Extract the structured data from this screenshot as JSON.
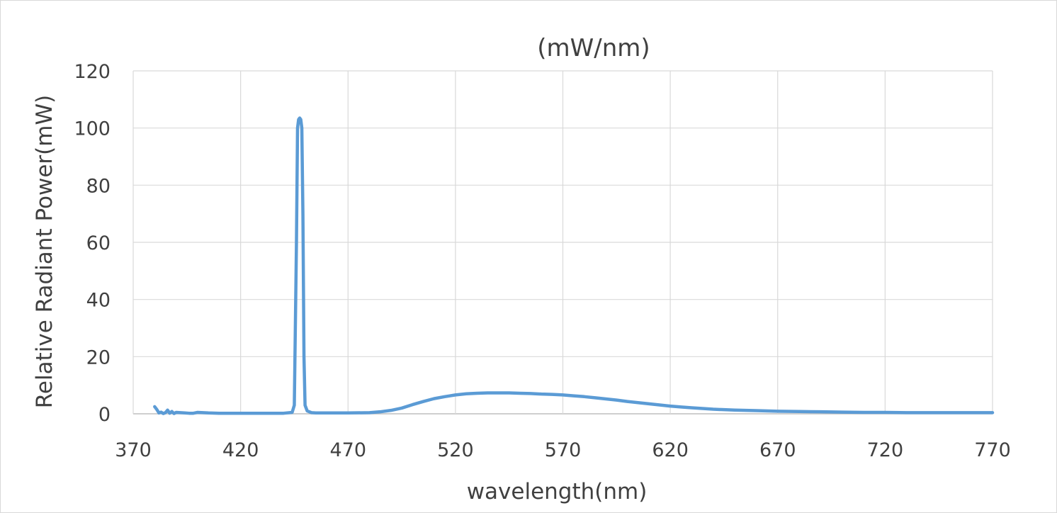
{
  "chart_data": {
    "type": "line",
    "title": "(mW/nm)",
    "xlabel": "wavelength(nm)",
    "ylabel": "Relative Radiant Power(mW)",
    "xlim": [
      370,
      770
    ],
    "ylim": [
      0,
      120
    ],
    "x_ticks": [
      "370",
      "420",
      "470",
      "520",
      "570",
      "620",
      "670",
      "720",
      "770"
    ],
    "y_ticks": [
      "0",
      "20",
      "40",
      "60",
      "80",
      "100",
      "120"
    ],
    "grid": true,
    "legend": "none",
    "series_color": "#5B9BD5",
    "series": [
      {
        "x": [
          380,
          381,
          382,
          383,
          384,
          385,
          386,
          387,
          388,
          389,
          390,
          392,
          394,
          396,
          398,
          400,
          405,
          410,
          420,
          430,
          440,
          444,
          445,
          446,
          446.5,
          447,
          447.5,
          448,
          448.5,
          449,
          449.5,
          450,
          451,
          453,
          455,
          460,
          470,
          480,
          485,
          490,
          495,
          500,
          505,
          510,
          515,
          520,
          525,
          530,
          535,
          540,
          545,
          550,
          555,
          560,
          565,
          570,
          575,
          580,
          585,
          590,
          595,
          600,
          605,
          610,
          615,
          620,
          625,
          630,
          640,
          650,
          660,
          670,
          680,
          690,
          700,
          710,
          720,
          730,
          740,
          750,
          760,
          770
        ],
        "y": [
          2.5,
          1.5,
          0.3,
          0.6,
          0.1,
          0.4,
          1.3,
          0.2,
          0.8,
          0.1,
          0.5,
          0.4,
          0.3,
          0.2,
          0.2,
          0.5,
          0.3,
          0.2,
          0.2,
          0.2,
          0.2,
          0.5,
          3,
          60,
          100,
          103,
          103.5,
          103,
          100,
          70,
          20,
          3,
          1,
          0.4,
          0.3,
          0.3,
          0.3,
          0.4,
          0.7,
          1.2,
          2,
          3.2,
          4.3,
          5.3,
          6,
          6.6,
          7,
          7.2,
          7.3,
          7.3,
          7.3,
          7.2,
          7.1,
          6.9,
          6.8,
          6.6,
          6.3,
          6,
          5.6,
          5.2,
          4.8,
          4.3,
          3.9,
          3.5,
          3.1,
          2.7,
          2.4,
          2.1,
          1.6,
          1.3,
          1.1,
          0.9,
          0.8,
          0.7,
          0.6,
          0.5,
          0.5,
          0.4,
          0.4,
          0.4,
          0.4,
          0.4
        ]
      }
    ]
  }
}
